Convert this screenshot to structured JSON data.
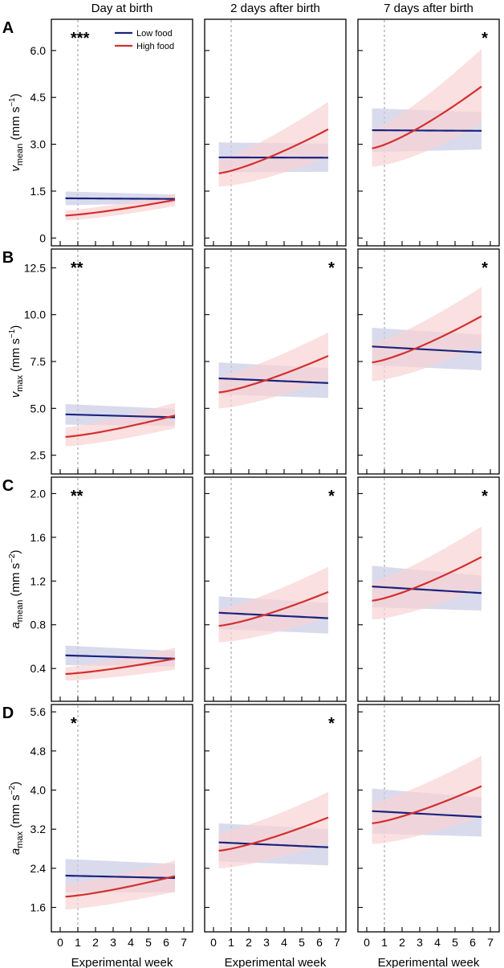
{
  "figure": {
    "column_titles": [
      "Day at birth",
      "2 days after birth",
      "7 days after birth"
    ],
    "row_labels": [
      "A",
      "B",
      "C",
      "D"
    ],
    "xlabel": "Experimental week",
    "legend": {
      "low": "Low food",
      "high": "High food"
    },
    "colors": {
      "low": "#1a237e",
      "high": "#d32f2f",
      "low_band": "#c9cce6",
      "high_band": "#f8d3d3",
      "ref_line": "#a8a8a8"
    }
  },
  "chart_data": [
    {
      "type": "line",
      "ylabel": {
        "sym": "v",
        "sub": "mean",
        "unit": "(mm s",
        "exp": "−1",
        "close": ")"
      },
      "ylim": [
        -0.25,
        7.0
      ],
      "yticks": [
        0,
        1.5,
        3.0,
        4.5,
        6.0
      ],
      "ytick_labels": [
        "0",
        "1.5",
        "3.0",
        "4.5",
        "6.0"
      ],
      "panels": [
        {
          "sig": "***",
          "low": {
            "start": 1.27,
            "end": 1.25,
            "band_start": 0.22,
            "band_end": 0.14
          },
          "high": {
            "start": 0.72,
            "end": 1.22,
            "band_start": 0.16,
            "band_end": 0.2
          }
        },
        {
          "sig": "",
          "low": {
            "start": 2.58,
            "end": 2.57,
            "band_start": 0.48,
            "band_end": 0.45
          },
          "high": {
            "start": 2.07,
            "end": 3.48,
            "band_start": 0.42,
            "band_end": 0.88
          }
        },
        {
          "sig": "*",
          "low": {
            "start": 3.45,
            "end": 3.43,
            "band_start": 0.7,
            "band_end": 0.6
          },
          "high": {
            "start": 2.87,
            "end": 4.85,
            "band_start": 0.58,
            "band_end": 1.2
          }
        }
      ]
    },
    {
      "type": "line",
      "ylabel": {
        "sym": "v",
        "sub": "max",
        "unit": "(mm s",
        "exp": "−1",
        "close": ")"
      },
      "ylim": [
        1.5,
        13.5
      ],
      "yticks": [
        2.5,
        5.0,
        7.5,
        10.0,
        12.5
      ],
      "ytick_labels": [
        "2.5",
        "5.0",
        "7.5",
        "10.0",
        "12.5"
      ],
      "panels": [
        {
          "sig": "**",
          "low": {
            "start": 4.68,
            "end": 4.52,
            "band_start": 0.55,
            "band_end": 0.45
          },
          "high": {
            "start": 3.48,
            "end": 4.62,
            "band_start": 0.5,
            "band_end": 0.68
          }
        },
        {
          "sig": "*",
          "low": {
            "start": 6.6,
            "end": 6.35,
            "band_start": 0.85,
            "band_end": 0.8
          },
          "high": {
            "start": 5.85,
            "end": 7.8,
            "band_start": 0.85,
            "band_end": 1.25
          }
        },
        {
          "sig": "*",
          "low": {
            "start": 8.3,
            "end": 7.98,
            "band_start": 1.0,
            "band_end": 0.95
          },
          "high": {
            "start": 7.45,
            "end": 9.92,
            "band_start": 1.0,
            "band_end": 1.55
          }
        }
      ]
    },
    {
      "type": "line",
      "ylabel": {
        "sym": "a",
        "sub": "mean",
        "unit": "(mm s",
        "exp": "−2",
        "close": ")"
      },
      "ylim": [
        0.1,
        2.15
      ],
      "yticks": [
        0.4,
        0.8,
        1.2,
        1.6,
        2.0
      ],
      "ytick_labels": [
        "0.4",
        "0.8",
        "1.2",
        "1.6",
        "2.0"
      ],
      "panels": [
        {
          "sig": "**",
          "low": {
            "start": 0.52,
            "end": 0.49,
            "band_start": 0.09,
            "band_end": 0.07
          },
          "high": {
            "start": 0.35,
            "end": 0.49,
            "band_start": 0.06,
            "band_end": 0.1
          }
        },
        {
          "sig": "*",
          "low": {
            "start": 0.91,
            "end": 0.86,
            "band_start": 0.15,
            "band_end": 0.14
          },
          "high": {
            "start": 0.79,
            "end": 1.1,
            "band_start": 0.15,
            "band_end": 0.23
          }
        },
        {
          "sig": "*",
          "low": {
            "start": 1.15,
            "end": 1.09,
            "band_start": 0.19,
            "band_end": 0.16
          },
          "high": {
            "start": 1.02,
            "end": 1.42,
            "band_start": 0.17,
            "band_end": 0.28
          }
        }
      ]
    },
    {
      "type": "line",
      "ylabel": {
        "sym": "a",
        "sub": "max",
        "unit": "(mm s",
        "exp": "−2",
        "close": ")"
      },
      "ylim": [
        1.1,
        5.75
      ],
      "yticks": [
        1.6,
        2.4,
        3.2,
        4.0,
        4.8,
        5.6
      ],
      "ytick_labels": [
        "1.6",
        "2.4",
        "3.2",
        "4.0",
        "4.8",
        "5.6"
      ],
      "panels": [
        {
          "sig": "*",
          "low": {
            "start": 2.25,
            "end": 2.2,
            "band_start": 0.34,
            "band_end": 0.29
          },
          "high": {
            "start": 1.82,
            "end": 2.24,
            "band_start": 0.26,
            "band_end": 0.32
          }
        },
        {
          "sig": "*",
          "low": {
            "start": 2.93,
            "end": 2.83,
            "band_start": 0.39,
            "band_end": 0.37
          },
          "high": {
            "start": 2.76,
            "end": 3.44,
            "band_start": 0.36,
            "band_end": 0.52
          }
        },
        {
          "sig": "",
          "low": {
            "start": 3.57,
            "end": 3.45,
            "band_start": 0.46,
            "band_end": 0.4
          },
          "high": {
            "start": 3.32,
            "end": 4.08,
            "band_start": 0.42,
            "band_end": 0.62
          }
        }
      ]
    }
  ],
  "x_axis": {
    "xlim": [
      -0.5,
      7.5
    ],
    "ticks": [
      0,
      1,
      2,
      3,
      4,
      5,
      6,
      7
    ],
    "tick_labels": [
      "0",
      "1",
      "2",
      "3",
      "4",
      "5",
      "6",
      "7"
    ],
    "fit_range": [
      0.3,
      6.5
    ],
    "ref_week": 1
  }
}
